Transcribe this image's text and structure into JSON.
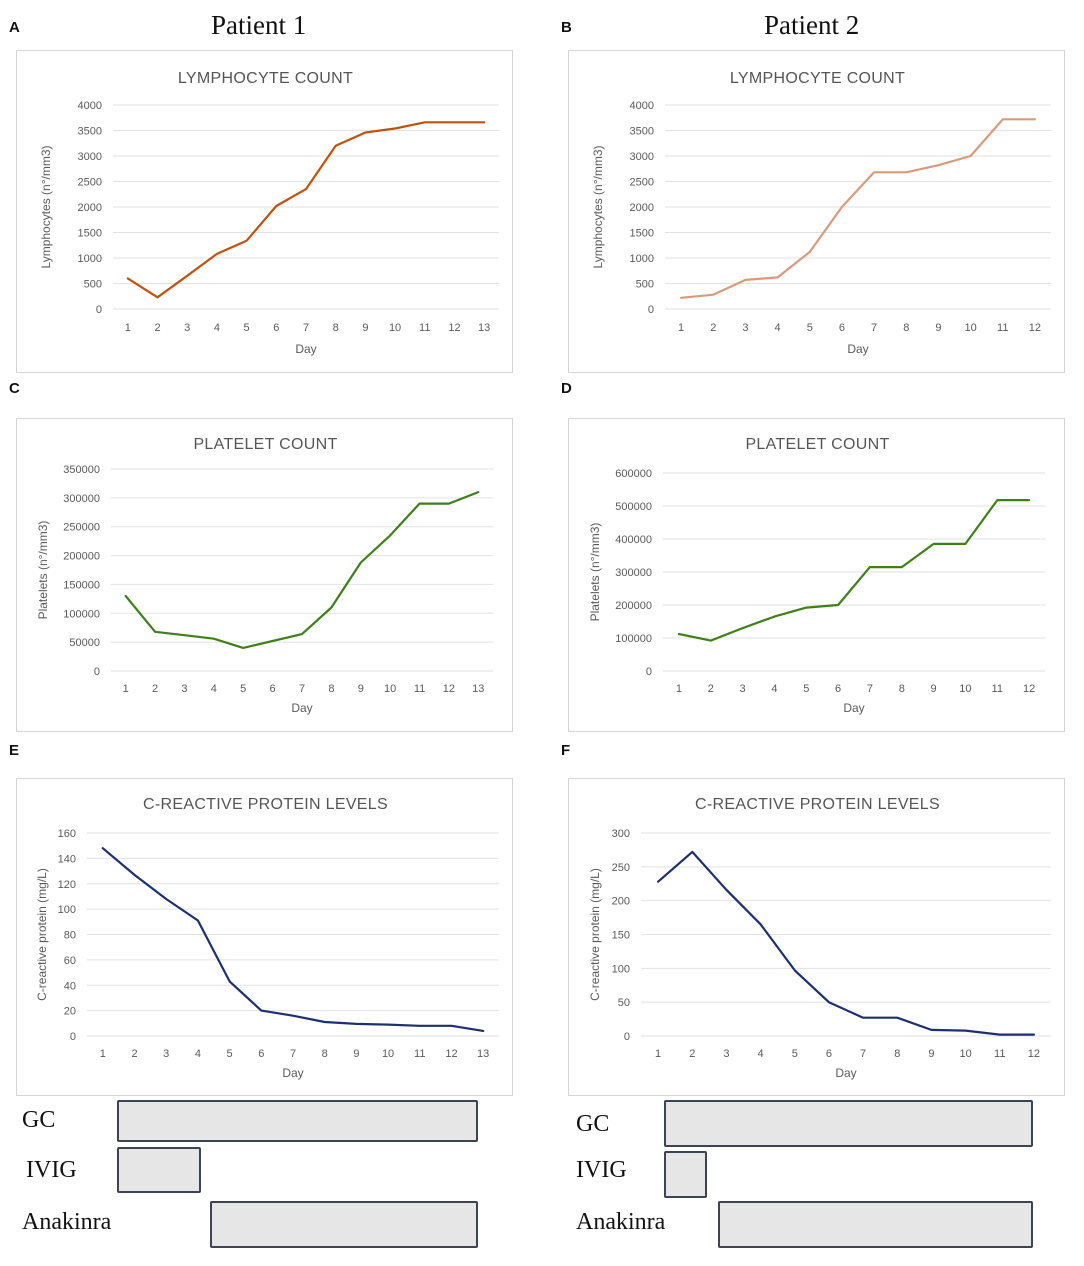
{
  "header": {
    "patient1": "Patient 1",
    "patient2": "Patient 2"
  },
  "panel_letters": [
    "A",
    "B",
    "C",
    "D",
    "E",
    "F"
  ],
  "treatments": {
    "labels": [
      "GC",
      "IVIG",
      "Anakinra"
    ]
  },
  "chart_data": [
    {
      "id": "A",
      "type": "line",
      "title": "LYMPHOCYTE COUNT",
      "xlabel": "Day",
      "ylabel": "Lymphocytes (n°/mm3)",
      "x": [
        1,
        2,
        3,
        4,
        5,
        6,
        7,
        8,
        9,
        10,
        11,
        12,
        13
      ],
      "values": [
        600,
        230,
        650,
        1080,
        1340,
        2020,
        2350,
        3200,
        3460,
        3540,
        3660,
        3660,
        3660
      ],
      "ylim": [
        0,
        4000
      ],
      "yticks": [
        0,
        500,
        1000,
        1500,
        2000,
        2500,
        3000,
        3500,
        4000
      ],
      "color": "#c0520f"
    },
    {
      "id": "B",
      "type": "line",
      "title": "LYMPHOCYTE COUNT",
      "xlabel": "Day",
      "ylabel": "Lymphocytes (n°/mm3)",
      "x": [
        1,
        2,
        3,
        4,
        5,
        6,
        7,
        8,
        9,
        10,
        11,
        12
      ],
      "values": [
        220,
        280,
        570,
        620,
        1120,
        2000,
        2680,
        2680,
        2820,
        3000,
        3720,
        3720
      ],
      "ylim": [
        0,
        4000
      ],
      "yticks": [
        0,
        500,
        1000,
        1500,
        2000,
        2500,
        3000,
        3500,
        4000
      ],
      "color": "#d99a7c"
    },
    {
      "id": "C",
      "type": "line",
      "title": "PLATELET COUNT",
      "xlabel": "Day",
      "ylabel": "Platelets (n°/mm3)",
      "x": [
        1,
        2,
        3,
        4,
        5,
        6,
        7,
        8,
        9,
        10,
        11,
        12,
        13
      ],
      "values": [
        130000,
        68000,
        62000,
        56000,
        40000,
        52000,
        64000,
        110000,
        188000,
        235000,
        290000,
        290000,
        310000
      ],
      "ylim": [
        0,
        350000
      ],
      "yticks": [
        0,
        50000,
        100000,
        150000,
        200000,
        250000,
        300000,
        350000
      ],
      "color": "#3f7f1b"
    },
    {
      "id": "D",
      "type": "line",
      "title": "PLATELET COUNT",
      "xlabel": "Day",
      "ylabel": "Platelets (n°/mm3)",
      "x": [
        1,
        2,
        3,
        4,
        5,
        6,
        7,
        8,
        9,
        10,
        11,
        12
      ],
      "values": [
        112000,
        92000,
        130000,
        165000,
        192000,
        200000,
        315000,
        315000,
        385000,
        385000,
        518000,
        518000
      ],
      "ylim": [
        0,
        600000
      ],
      "yticks": [
        0,
        100000,
        200000,
        300000,
        400000,
        500000,
        600000
      ],
      "color": "#3f7f1b"
    },
    {
      "id": "E",
      "type": "line",
      "title": "C-REACTIVE PROTEIN LEVELS",
      "xlabel": "Day",
      "ylabel": "C-reactive protein (mg/L)",
      "x": [
        1,
        2,
        3,
        4,
        5,
        6,
        7,
        8,
        9,
        10,
        11,
        12,
        13
      ],
      "values": [
        148,
        127,
        108,
        91,
        43,
        20,
        16,
        11,
        9.5,
        9,
        8,
        8,
        4
      ],
      "ylim": [
        0,
        160
      ],
      "yticks": [
        0,
        20,
        40,
        60,
        80,
        100,
        120,
        140,
        160
      ],
      "color": "#1c2f6e"
    },
    {
      "id": "F",
      "type": "line",
      "title": "C-REACTIVE PROTEIN LEVELS",
      "xlabel": "Day",
      "ylabel": "C-reactive protein (mg/L)",
      "x": [
        1,
        2,
        3,
        4,
        5,
        6,
        7,
        8,
        9,
        10,
        11,
        12
      ],
      "values": [
        228,
        272,
        216,
        165,
        97,
        50,
        27,
        27,
        9,
        8,
        2,
        2
      ],
      "ylim": [
        0,
        300
      ],
      "yticks": [
        0,
        50,
        100,
        150,
        200,
        250,
        300
      ],
      "color": "#1c2f6e"
    }
  ]
}
